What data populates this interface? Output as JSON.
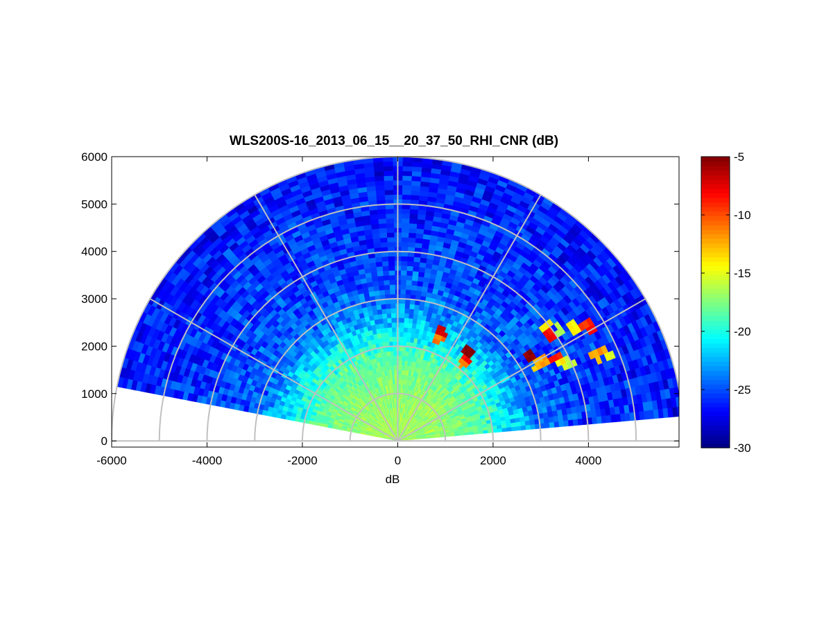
{
  "chart_data": {
    "type": "heatmap",
    "subtype": "polar-rhi-scan",
    "title": "WLS200S-16_2013_06_15__20_37_50_RHI_CNR (dB)",
    "xlabel": "dB",
    "ylabel": "",
    "xlim": [
      -6000,
      6000
    ],
    "ylim": [
      0,
      6000
    ],
    "x_ticks": [
      "-6000",
      "-4000",
      "-2000",
      "0",
      "2000",
      "4000"
    ],
    "y_ticks": [
      "0",
      "1000",
      "2000",
      "3000",
      "4000",
      "5000",
      "6000"
    ],
    "colorbar": {
      "colormap": "jet",
      "range": [
        -30,
        -5
      ],
      "ticks": [
        "-5",
        "-10",
        "-15",
        "-20",
        "-25",
        "-30"
      ]
    },
    "scan": {
      "elevation_start_deg": 5,
      "elevation_end_deg": 169,
      "max_range": 6000,
      "range_gate": 100,
      "ray_step_deg": 2
    },
    "polar_grid": {
      "range_rings": [
        1000,
        2000,
        3000,
        4000,
        5000,
        6000
      ],
      "spoke_angles_deg": [
        0,
        30,
        60,
        90,
        120,
        150,
        180
      ],
      "color": "#c0c0c0"
    },
    "cnr_profile": [
      {
        "range": 0,
        "cnr": -16.5
      },
      {
        "range": 1000,
        "cnr": -17
      },
      {
        "range": 1800,
        "cnr": -18.5
      },
      {
        "range": 2400,
        "cnr": -21.5
      },
      {
        "range": 3000,
        "cnr": -24.5
      },
      {
        "range": 4000,
        "cnr": -25.5
      },
      {
        "range": 6000,
        "cnr": -26.5
      }
    ],
    "hotspots": [
      {
        "x": 3400,
        "y": 2350,
        "cnr": -16
      },
      {
        "x": 3700,
        "y": 2400,
        "cnr": -14
      },
      {
        "x": 3950,
        "y": 2450,
        "cnr": -9
      },
      {
        "x": 4100,
        "y": 2350,
        "cnr": -8
      },
      {
        "x": 3150,
        "y": 2400,
        "cnr": -14
      },
      {
        "x": 3200,
        "y": 2250,
        "cnr": -8
      },
      {
        "x": 4300,
        "y": 1900,
        "cnr": -12
      },
      {
        "x": 4450,
        "y": 1850,
        "cnr": -15
      },
      {
        "x": 4150,
        "y": 1800,
        "cnr": -13
      },
      {
        "x": 2800,
        "y": 1800,
        "cnr": -5
      },
      {
        "x": 3050,
        "y": 1700,
        "cnr": -12
      },
      {
        "x": 3300,
        "y": 1750,
        "cnr": -9
      },
      {
        "x": 3400,
        "y": 1700,
        "cnr": -14
      },
      {
        "x": 3600,
        "y": 1650,
        "cnr": -16
      },
      {
        "x": 2950,
        "y": 1600,
        "cnr": -13
      },
      {
        "x": 1500,
        "y": 1900,
        "cnr": -5
      },
      {
        "x": 1450,
        "y": 1750,
        "cnr": -8
      },
      {
        "x": 1400,
        "y": 1650,
        "cnr": -11
      },
      {
        "x": 900,
        "y": 2300,
        "cnr": -7
      },
      {
        "x": 850,
        "y": 2200,
        "cnr": -11
      }
    ]
  }
}
